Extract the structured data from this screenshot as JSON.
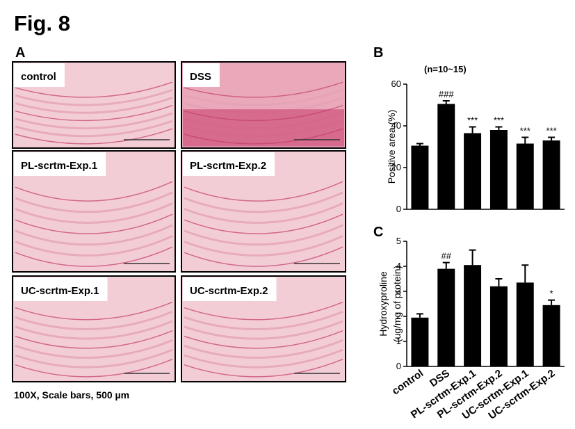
{
  "title": "Fig. 8",
  "panels": {
    "a_label": "A",
    "images": [
      {
        "label": "control"
      },
      {
        "label": "DSS"
      },
      {
        "label": "PL-scrtm-Exp.1"
      },
      {
        "label": "PL-scrtm-Exp.2"
      },
      {
        "label": "UC-scrtm-Exp.1"
      },
      {
        "label": "UC-scrtm-Exp.2"
      }
    ],
    "caption": "100X, Scale bars, 500 µm"
  },
  "chart_data": [
    {
      "type": "bar",
      "panel": "B",
      "subtitle": "(n=10~15)",
      "ylabel": [
        "Positive area (%)"
      ],
      "categories": [
        null,
        null,
        null,
        null,
        null,
        null
      ],
      "values": [
        30.5,
        50.5,
        36.5,
        38,
        31.5,
        33
      ],
      "errors": [
        1,
        1.5,
        3,
        1.5,
        3,
        1.5
      ],
      "annotations": [
        null,
        "###",
        "***",
        "***",
        "***",
        "***"
      ],
      "color": "#000000",
      "ylim": [
        0,
        60
      ],
      "yticks": [
        0,
        20,
        40,
        60
      ]
    },
    {
      "type": "bar",
      "panel": "C",
      "ylabel": [
        "Hydroxyproline",
        "(ug/mg of protein)"
      ],
      "categories": [
        "control",
        "DSS",
        "PL-scrtm-Exp.1",
        "PL-scrtm-Exp.2",
        "UC-scrtm-Exp.1",
        "UC-scrtm-Exp.2"
      ],
      "values": [
        1.95,
        3.9,
        4.05,
        3.2,
        3.35,
        2.45
      ],
      "errors": [
        0.15,
        0.25,
        0.6,
        0.3,
        0.7,
        0.2
      ],
      "annotations": [
        null,
        "##",
        null,
        null,
        null,
        "*"
      ],
      "color": "#000000",
      "ylim": [
        0,
        5
      ],
      "yticks": [
        0,
        1,
        2,
        3,
        4,
        5
      ]
    }
  ]
}
